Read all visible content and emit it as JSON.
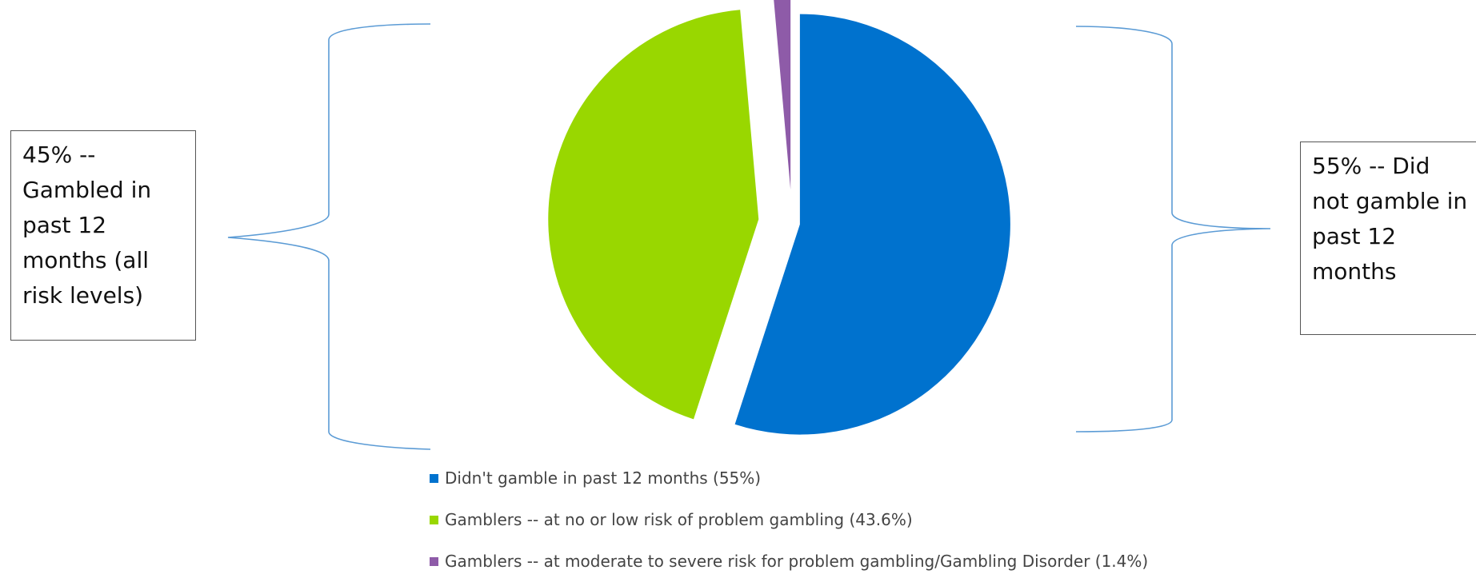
{
  "chart_data": {
    "type": "pie",
    "title": "",
    "series": [
      {
        "values": [
          55,
          43.6,
          1.4
        ],
        "labels": [
          "Didn't gamble in past 12 months (55%)",
          "Gamblers -- at no or low risk of problem gambling (43.6%)",
          "Gamblers --  at moderate to severe risk for problem gambling/Gambling Disorder (1.4%)"
        ],
        "colors": [
          "#0072CE",
          "#99D700",
          "#8E5BA8"
        ]
      }
    ],
    "slices_exploded": true,
    "legend_placement": "bottom",
    "callouts": [
      {
        "text": "45% -- Gambled in past 12 months (all risk levels)",
        "side": "left"
      },
      {
        "text": "55% -- Did not gamble in past 12 months",
        "side": "right"
      }
    ]
  }
}
